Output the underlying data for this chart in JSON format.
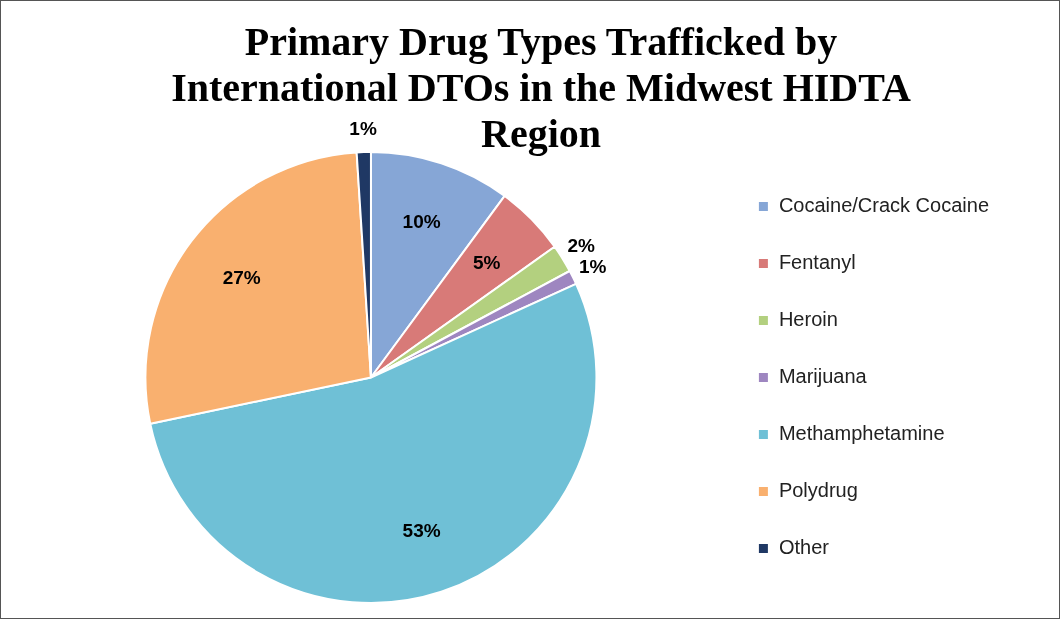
{
  "chart_data": {
    "type": "pie",
    "title": "Primary Drug Types Trafficked by International DTOs in the Midwest HIDTA Region",
    "categories": [
      "Cocaine/Crack Cocaine",
      "Fentanyl",
      "Heroin",
      "Marijuana",
      "Methamphetamine",
      "Polydrug",
      "Other"
    ],
    "values": [
      10,
      5,
      2,
      1,
      53,
      27,
      1
    ],
    "colors": [
      "#86a6d6",
      "#d87a78",
      "#b3d07f",
      "#9e86c0",
      "#6fc0d6",
      "#f9b06f",
      "#1f3864"
    ],
    "value_labels": [
      "10%",
      "5%",
      "2%",
      "1%",
      "53%",
      "27%",
      "1%"
    ],
    "legend": "right"
  }
}
